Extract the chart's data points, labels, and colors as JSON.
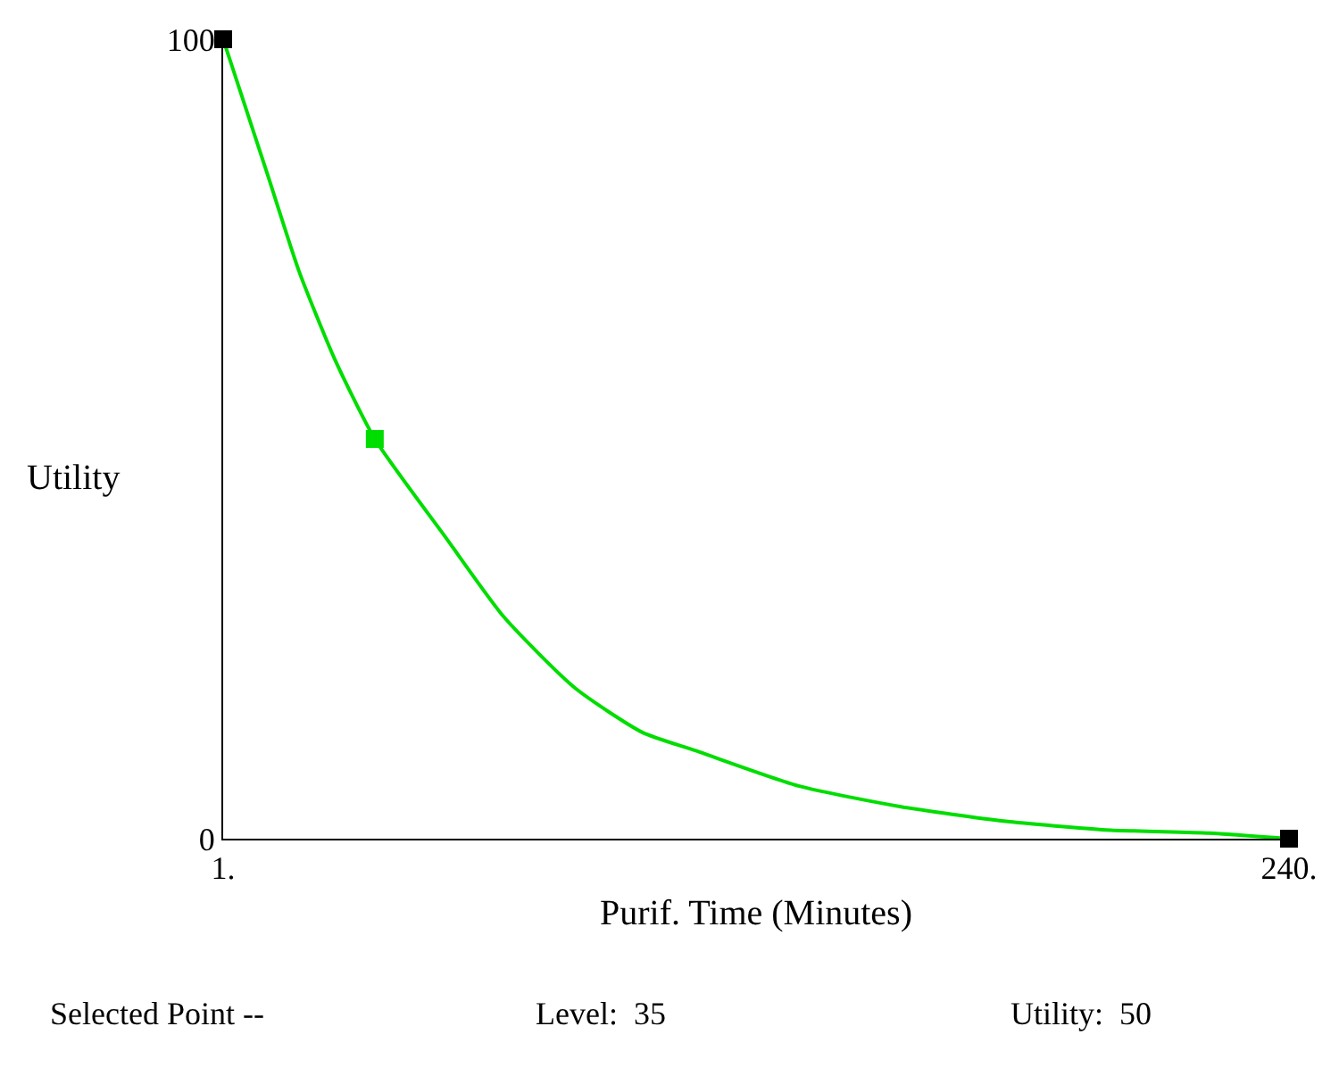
{
  "chart_data": {
    "type": "line",
    "xlabel": "Purif. Time (Minutes)",
    "ylabel": "Utility",
    "x": [
      1,
      11,
      18,
      26,
      35,
      51,
      64,
      80,
      95,
      107,
      130,
      153,
      176,
      199,
      222,
      240
    ],
    "series": [
      {
        "color": "#00dd00",
        "marker": "none",
        "values": [
          100,
          83,
          71,
          60,
          50,
          37.6,
          27.7,
          18.8,
          13.3,
          11,
          6.6,
          4,
          2.2,
          1.1,
          0.7,
          0
        ]
      },
      {
        "type": "scatter",
        "marker": "square",
        "x": [
          1,
          35,
          240
        ],
        "colors": [
          "#000000",
          "#00dd00",
          "#000000"
        ],
        "values": [
          100,
          50,
          0
        ]
      }
    ],
    "xlim": [
      1,
      240
    ],
    "ylim": [
      0,
      100
    ],
    "xticks": [
      {
        "value": 1,
        "label": "1."
      },
      {
        "value": 240,
        "label": "240."
      }
    ],
    "yticks": [
      0,
      100
    ],
    "legend": false,
    "annotations": [
      "Selected Point --",
      "Level:  35",
      "Utility:  50"
    ]
  }
}
